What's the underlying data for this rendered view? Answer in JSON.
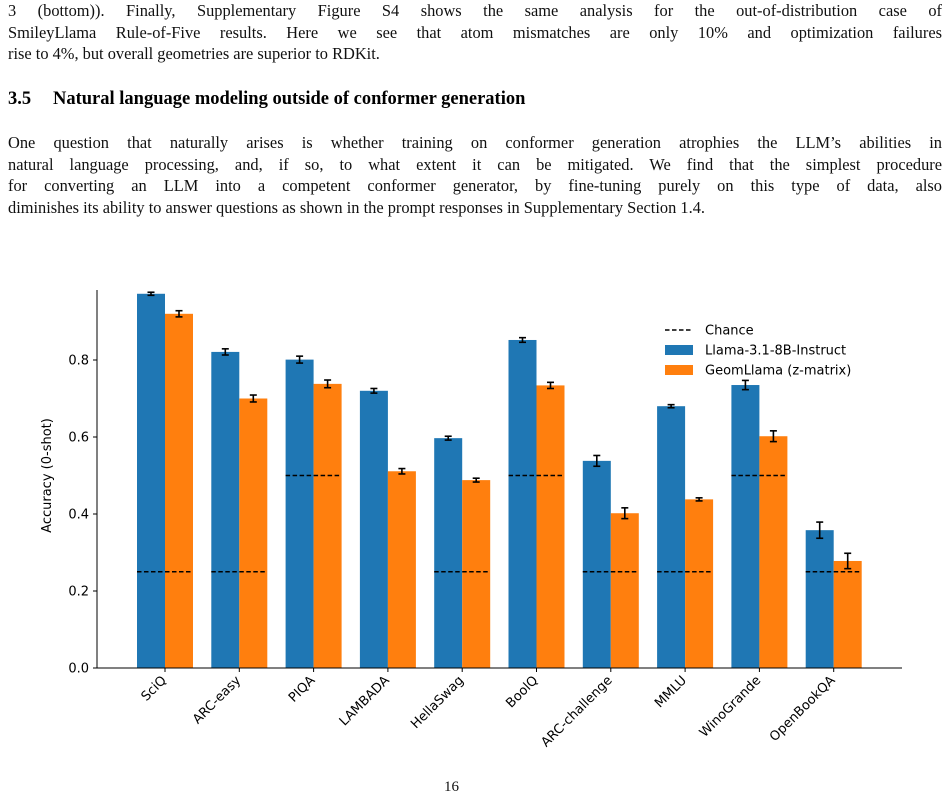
{
  "paragraph_1": {
    "lines": [
      "3 (bottom)). Finally, Supplementary Figure S4 shows the same analysis for the out-of-distribution case of",
      "SmileyLlama Rule-of-Five results. Here we see that atom mismatches are only 10% and optimization failures",
      "rise to 4%, but overall geometries are superior to RDKit."
    ]
  },
  "section": {
    "number": "3.5",
    "title": "Natural language modeling outside of conformer generation"
  },
  "paragraph_2": {
    "lines": [
      "One question that naturally arises is whether training on conformer generation atrophies the LLM’s abilities in",
      "natural language processing, and, if so, to what extent it can be mitigated. We find that the simplest procedure",
      "for converting an LLM into a competent conformer generator, by fine-tuning purely on this type of data, also",
      "diminishes its ability to answer questions as shown in the prompt responses in Supplementary Section 1.4."
    ]
  },
  "page_number": "16",
  "chart_data": {
    "type": "bar",
    "ylabel": "Accuracy (0-shot)",
    "xlabel": "",
    "ylim": [
      0,
      1.0
    ],
    "yticks": [
      "0.0",
      "0.2",
      "0.4",
      "0.6",
      "0.8",
      "1.0"
    ],
    "ytick_values": [
      0,
      0.2,
      0.4,
      0.6,
      0.8,
      1.0
    ],
    "categories": [
      "SciQ",
      "ARC-easy",
      "PIQA",
      "LAMBADA",
      "HellaSwag",
      "BoolQ",
      "ARC-challenge",
      "MMLU",
      "WinoGrande",
      "OpenBookQA"
    ],
    "series": [
      {
        "name": "Llama-3.1-8B-Instruct",
        "color": "#1f77b4",
        "values": [
          0.972,
          0.821,
          0.801,
          0.72,
          0.597,
          0.852,
          0.538,
          0.68,
          0.735,
          0.358
        ],
        "errors": [
          0.004,
          0.008,
          0.009,
          0.006,
          0.005,
          0.006,
          0.014,
          0.004,
          0.012,
          0.021
        ]
      },
      {
        "name": "GeomLlama (z-matrix)",
        "color": "#ff7f0e",
        "values": [
          0.92,
          0.7,
          0.738,
          0.511,
          0.488,
          0.734,
          0.402,
          0.438,
          0.602,
          0.278
        ],
        "errors": [
          0.008,
          0.009,
          0.01,
          0.007,
          0.005,
          0.008,
          0.014,
          0.004,
          0.014,
          0.02
        ]
      }
    ],
    "chance": {
      "name": "Chance",
      "values": [
        0.25,
        0.25,
        0.5,
        null,
        0.25,
        0.5,
        0.25,
        0.25,
        0.5,
        0.25
      ]
    },
    "legend_position": "top-right",
    "grid": false
  }
}
